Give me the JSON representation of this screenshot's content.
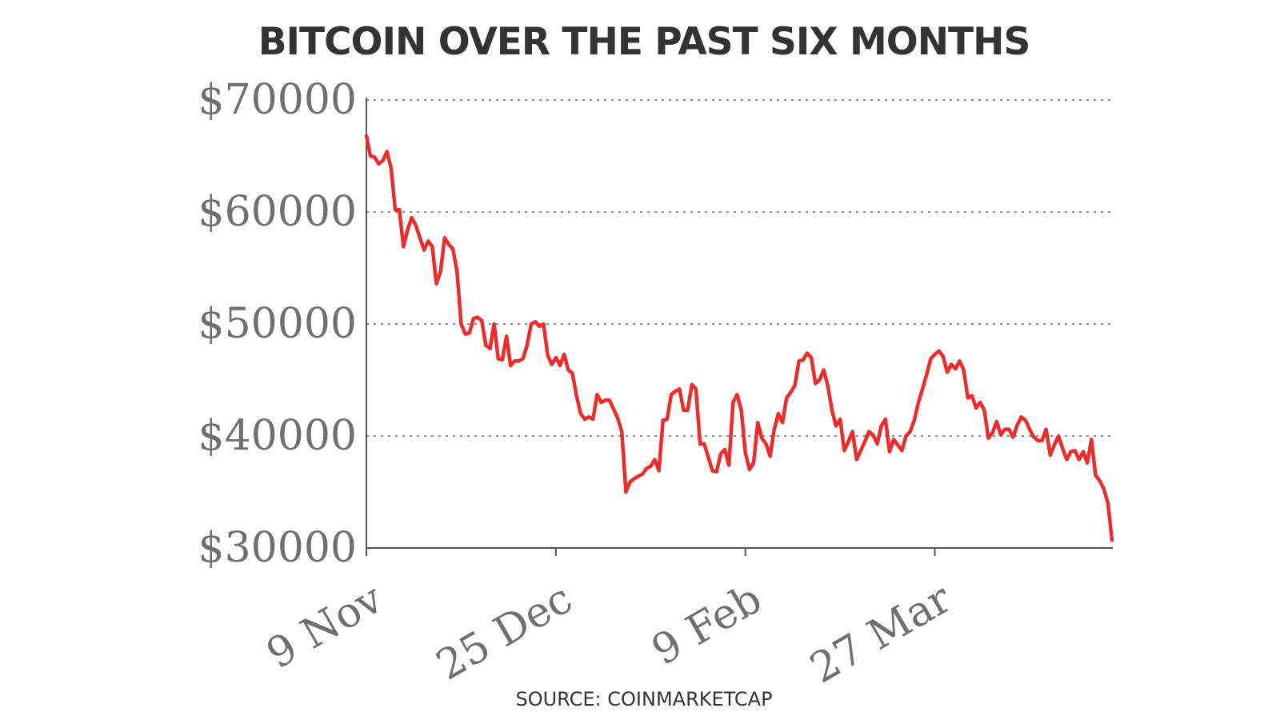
{
  "chart_data": {
    "type": "line",
    "title": "BITCOIN OVER THE PAST SIX MONTHS",
    "source": "SOURCE: COINMARKETCAP",
    "xlabel": "",
    "ylabel": "",
    "ylim": [
      30000,
      70000
    ],
    "xlim": [
      "9 Nov",
      "9 May"
    ],
    "y_ticks": [
      30000,
      40000,
      50000,
      60000,
      70000
    ],
    "y_tick_labels": [
      "$30000",
      "$40000",
      "$50000",
      "$60000",
      "$70000"
    ],
    "x_ticks": [
      "9 Nov",
      "25 Dec",
      "9 Feb",
      "27 Mar"
    ],
    "grid": "horizontal dotted",
    "line_color": "#ee2a2a",
    "x": [
      "9 Nov",
      "10 Nov",
      "11 Nov",
      "12 Nov",
      "13 Nov",
      "14 Nov",
      "15 Nov",
      "16 Nov",
      "17 Nov",
      "18 Nov",
      "19 Nov",
      "20 Nov",
      "21 Nov",
      "22 Nov",
      "23 Nov",
      "24 Nov",
      "25 Nov",
      "26 Nov",
      "27 Nov",
      "28 Nov",
      "29 Nov",
      "30 Nov",
      "1 Dec",
      "2 Dec",
      "3 Dec",
      "4 Dec",
      "5 Dec",
      "6 Dec",
      "7 Dec",
      "8 Dec",
      "9 Dec",
      "10 Dec",
      "11 Dec",
      "12 Dec",
      "13 Dec",
      "14 Dec",
      "15 Dec",
      "16 Dec",
      "17 Dec",
      "18 Dec",
      "19 Dec",
      "20 Dec",
      "21 Dec",
      "22 Dec",
      "23 Dec",
      "24 Dec",
      "25 Dec",
      "26 Dec",
      "27 Dec",
      "28 Dec",
      "29 Dec",
      "30 Dec",
      "31 Dec",
      "1 Jan",
      "2 Jan",
      "3 Jan",
      "4 Jan",
      "5 Jan",
      "6 Jan",
      "7 Jan",
      "8 Jan",
      "9 Jan",
      "10 Jan",
      "11 Jan",
      "12 Jan",
      "13 Jan",
      "14 Jan",
      "15 Jan",
      "16 Jan",
      "17 Jan",
      "18 Jan",
      "19 Jan",
      "20 Jan",
      "21 Jan",
      "22 Jan",
      "23 Jan",
      "24 Jan",
      "25 Jan",
      "26 Jan",
      "27 Jan",
      "28 Jan",
      "29 Jan",
      "30 Jan",
      "31 Jan",
      "1 Feb",
      "2 Feb",
      "3 Feb",
      "4 Feb",
      "5 Feb",
      "6 Feb",
      "7 Feb",
      "8 Feb",
      "9 Feb",
      "10 Feb",
      "11 Feb",
      "12 Feb",
      "13 Feb",
      "14 Feb",
      "15 Feb",
      "16 Feb",
      "17 Feb",
      "18 Feb",
      "19 Feb",
      "20 Feb",
      "21 Feb",
      "22 Feb",
      "23 Feb",
      "24 Feb",
      "25 Feb",
      "26 Feb",
      "27 Feb",
      "28 Feb",
      "1 Mar",
      "2 Mar",
      "3 Mar",
      "4 Mar",
      "5 Mar",
      "6 Mar",
      "7 Mar",
      "8 Mar",
      "9 Mar",
      "10 Mar",
      "11 Mar",
      "12 Mar",
      "13 Mar",
      "14 Mar",
      "15 Mar",
      "16 Mar",
      "17 Mar",
      "18 Mar",
      "19 Mar",
      "20 Mar",
      "21 Mar",
      "22 Mar",
      "23 Mar",
      "24 Mar",
      "25 Mar",
      "26 Mar",
      "27 Mar",
      "28 Mar",
      "29 Mar",
      "30 Mar",
      "31 Mar",
      "1 Apr",
      "2 Apr",
      "3 Apr",
      "4 Apr",
      "5 Apr",
      "6 Apr",
      "7 Apr",
      "8 Apr",
      "9 Apr",
      "10 Apr",
      "11 Apr",
      "12 Apr",
      "13 Apr",
      "14 Apr",
      "15 Apr",
      "16 Apr",
      "17 Apr",
      "18 Apr",
      "19 Apr",
      "20 Apr",
      "21 Apr",
      "22 Apr",
      "23 Apr",
      "24 Apr",
      "25 Apr",
      "26 Apr",
      "27 Apr",
      "28 Apr",
      "29 Apr",
      "30 Apr",
      "1 May",
      "2 May",
      "3 May",
      "4 May",
      "5 May",
      "6 May",
      "7 May",
      "8 May",
      "9 May"
    ],
    "y": [
      66800,
      65000,
      64900,
      64300,
      64600,
      65400,
      63900,
      60200,
      60200,
      56900,
      58400,
      59500,
      58800,
      57700,
      56600,
      57400,
      56900,
      53600,
      54700,
      57700,
      57100,
      56700,
      54700,
      50000,
      49100,
      49200,
      50500,
      50600,
      50300,
      48100,
      47800,
      50000,
      46900,
      46800,
      48900,
      46300,
      46700,
      46700,
      46900,
      48100,
      50000,
      50200,
      49800,
      50000,
      47200,
      46400,
      47000,
      46300,
      47300,
      45900,
      45600,
      43600,
      42000,
      41500,
      41700,
      41500,
      43700,
      43000,
      43200,
      43200,
      42400,
      41600,
      40400,
      35000,
      35900,
      36200,
      36400,
      36600,
      37100,
      37300,
      37900,
      36900,
      41400,
      41500,
      43700,
      44000,
      44200,
      42300,
      42300,
      44600,
      44200,
      39300,
      39300,
      38100,
      36900,
      36800,
      38400,
      38800,
      37400,
      43000,
      43700,
      42300,
      38500,
      37000,
      37600,
      41200,
      39800,
      39300,
      38200,
      40600,
      42000,
      41200,
      43400,
      43900,
      44500,
      46700,
      46800,
      47400,
      47000,
      44700,
      45000,
      45900,
      44500,
      42300,
      40900,
      41500,
      38700,
      39500,
      40400,
      37900,
      38700,
      39500,
      40400,
      40100,
      39300,
      40900,
      41500,
      38600,
      39700,
      39200,
      38700,
      40000,
      40400,
      41400,
      43000,
      44200,
      45500,
      46900,
      47300,
      47600,
      47100,
      45700,
      46400,
      46000,
      46700,
      45900,
      43400,
      43600,
      42500,
      43000,
      42300,
      39800,
      40300,
      41300,
      40100,
      40600,
      40600,
      39900,
      41000,
      41700,
      41400,
      40600,
      39900,
      39600,
      39600,
      40600,
      38300,
      39200,
      40000,
      38900,
      37900,
      38600,
      38700,
      37900,
      38600,
      37600,
      39700,
      36500,
      36000,
      35300,
      34000,
      30700
    ]
  }
}
